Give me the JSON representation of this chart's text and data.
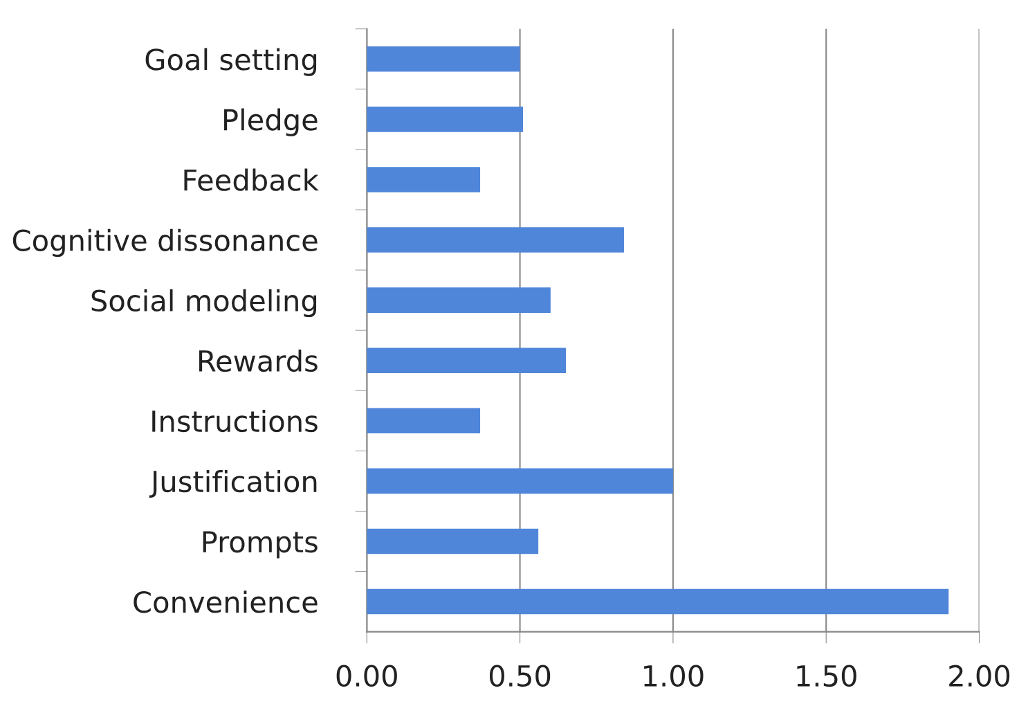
{
  "chart_data": {
    "type": "bar",
    "orientation": "horizontal",
    "categories": [
      "Goal setting",
      "Pledge",
      "Feedback",
      "Cognitive dissonance",
      "Social modeling",
      "Rewards",
      "Instructions",
      "Justification",
      "Prompts",
      "Convenience"
    ],
    "values": [
      0.5,
      0.51,
      0.37,
      0.84,
      0.6,
      0.65,
      0.37,
      1.0,
      0.56,
      1.9
    ],
    "color": "#4f86d9",
    "xlim": [
      0,
      2
    ],
    "xticks": [
      {
        "value": 0,
        "label": "0.00"
      },
      {
        "value": 0.5,
        "label": "0.50"
      },
      {
        "value": 1,
        "label": "1.00"
      },
      {
        "value": 1.5,
        "label": "1.50"
      },
      {
        "value": 2,
        "label": "2.00"
      }
    ],
    "grid": "x"
  }
}
